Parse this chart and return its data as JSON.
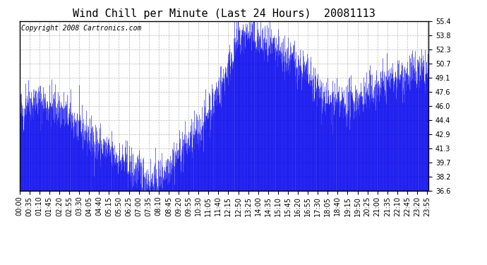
{
  "title": "Wind Chill per Minute (Last 24 Hours)  20081113",
  "copyright": "Copyright 2008 Cartronics.com",
  "line_color": "#0000EE",
  "bg_color": "#ffffff",
  "plot_bg_color": "#ffffff",
  "grid_color": "#aaaaaa",
  "ylim": [
    36.6,
    55.4
  ],
  "yticks": [
    36.6,
    38.2,
    39.7,
    41.3,
    42.9,
    44.4,
    46.0,
    47.6,
    49.1,
    50.7,
    52.3,
    53.8,
    55.4
  ],
  "title_fontsize": 11,
  "copyright_fontsize": 7,
  "tick_fontsize": 7
}
